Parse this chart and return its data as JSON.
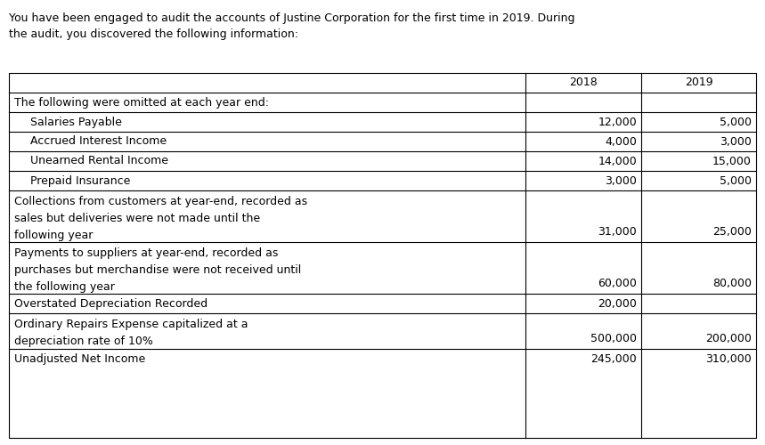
{
  "header_text_line1": "You have been engaged to audit the accounts of Justine Corporation for the first time in 2019. During",
  "header_text_line2": "the audit, you discovered the following information:",
  "col_headers": [
    "2018",
    "2019"
  ],
  "rows": [
    {
      "label": "The following were omitted at each year end:",
      "val2018": "",
      "val2019": "",
      "indent": 0,
      "lines": 1
    },
    {
      "label": "Salaries Payable",
      "val2018": "12,000",
      "val2019": "5,000",
      "indent": 1,
      "lines": 1
    },
    {
      "label": "Accrued Interest Income",
      "val2018": "4,000",
      "val2019": "3,000",
      "indent": 1,
      "lines": 1
    },
    {
      "label": "Unearned Rental Income",
      "val2018": "14,000",
      "val2019": "15,000",
      "indent": 1,
      "lines": 1
    },
    {
      "label": "Prepaid Insurance",
      "val2018": "3,000",
      "val2019": "5,000",
      "indent": 1,
      "lines": 1
    },
    {
      "label": "Collections from customers at year-end, recorded as\nsales but deliveries were not made until the\nfollowing year",
      "val2018": "31,000",
      "val2019": "25,000",
      "indent": 0,
      "lines": 3
    },
    {
      "label": "Payments to suppliers at year-end, recorded as\npurchases but merchandise were not received until\nthe following year",
      "val2018": "60,000",
      "val2019": "80,000",
      "indent": 0,
      "lines": 3
    },
    {
      "label": "Overstated Depreciation Recorded",
      "val2018": "20,000",
      "val2019": "",
      "indent": 0,
      "lines": 1
    },
    {
      "label": "Ordinary Repairs Expense capitalized at a\ndepreciation rate of 10%",
      "val2018": "500,000",
      "val2019": "200,000",
      "indent": 0,
      "lines": 2
    },
    {
      "label": "Unadjusted Net Income",
      "val2018": "245,000",
      "val2019": "310,000",
      "indent": 0,
      "lines": 1
    }
  ],
  "font_size": 9.0,
  "bg_color": "#ffffff",
  "text_color": "#000000",
  "line_color": "#000000",
  "fig_width": 8.59,
  "fig_height": 5.0,
  "dpi": 100
}
